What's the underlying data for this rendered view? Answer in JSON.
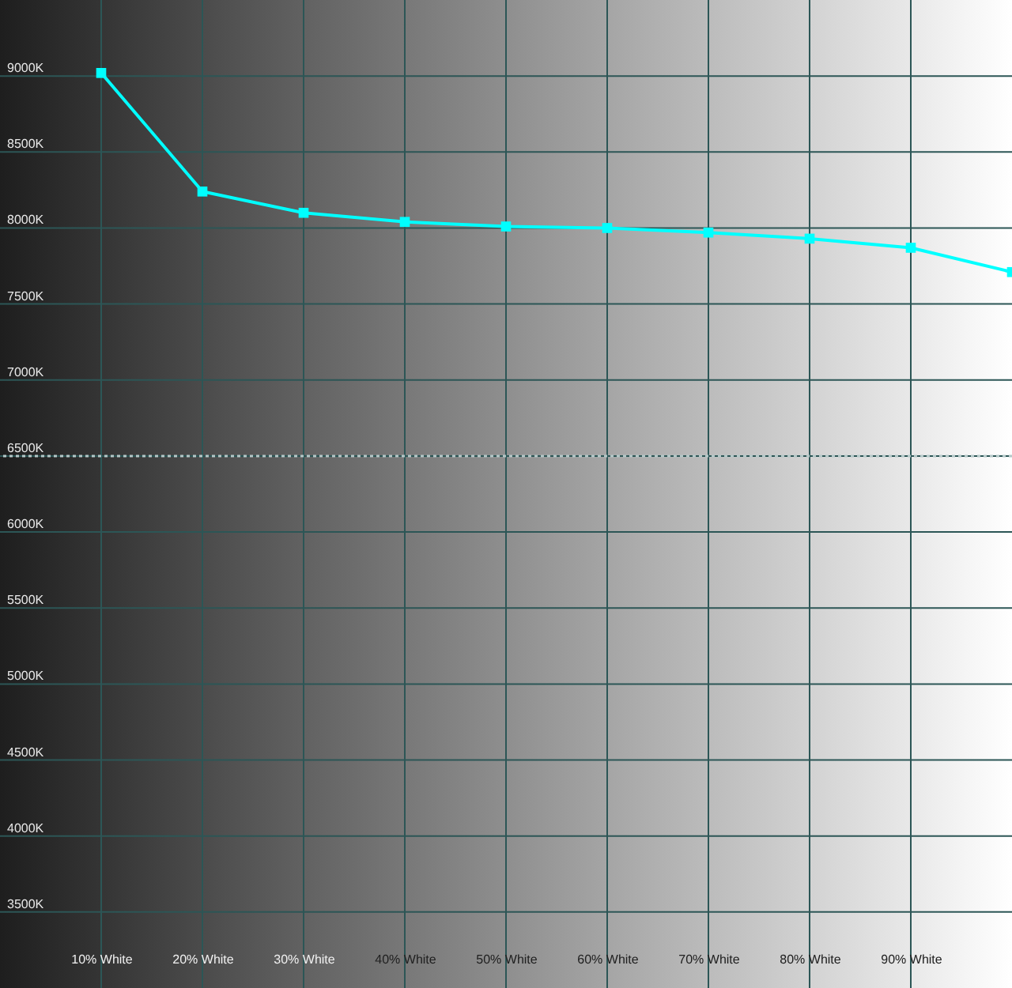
{
  "chart_data": {
    "type": "line",
    "x": [
      10,
      20,
      30,
      40,
      50,
      60,
      70,
      80,
      90,
      100
    ],
    "series": [
      {
        "color": "#00ffff",
        "values": [
          9020,
          8240,
          8100,
          8040,
          8010,
          8000,
          7970,
          7930,
          7870,
          7710
        ]
      }
    ],
    "xlim": [
      0,
      100
    ],
    "xticks": [
      {
        "value": 10,
        "label": "10% White"
      },
      {
        "value": 20,
        "label": "20% White"
      },
      {
        "value": 30,
        "label": "30% White"
      },
      {
        "value": 40,
        "label": "40% White"
      },
      {
        "value": 50,
        "label": "50% White"
      },
      {
        "value": 60,
        "label": "60% White"
      },
      {
        "value": 70,
        "label": "70% White"
      },
      {
        "value": 80,
        "label": "80% White"
      },
      {
        "value": 90,
        "label": "90% White"
      }
    ],
    "ylim": [
      3000,
      9500
    ],
    "yticks": [
      {
        "value": 3500,
        "label": "3500K"
      },
      {
        "value": 4000,
        "label": "4000K"
      },
      {
        "value": 4500,
        "label": "4500K"
      },
      {
        "value": 5000,
        "label": "5000K"
      },
      {
        "value": 5500,
        "label": "5500K"
      },
      {
        "value": 6000,
        "label": "6000K"
      },
      {
        "value": 6500,
        "label": "6500K"
      },
      {
        "value": 7000,
        "label": "7000K"
      },
      {
        "value": 7500,
        "label": "7500K"
      },
      {
        "value": 8000,
        "label": "8000K"
      },
      {
        "value": 8500,
        "label": "8500K"
      },
      {
        "value": 9000,
        "label": "9000K"
      }
    ],
    "ref_lines": [
      {
        "axis": "y",
        "value": 6500,
        "color": "#b4c8c8",
        "line_style": "dotted"
      }
    ],
    "grid": true,
    "marker": "square",
    "line_style": "solid"
  }
}
